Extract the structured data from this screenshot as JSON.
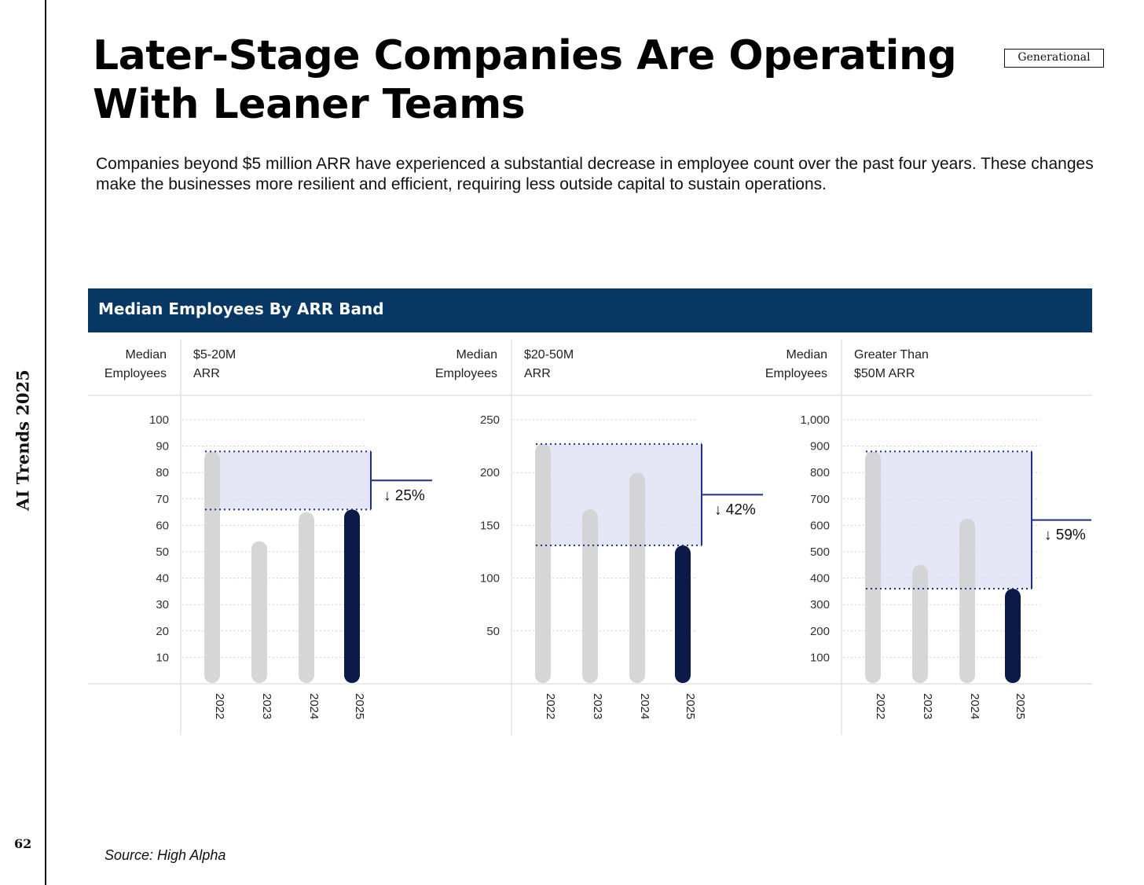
{
  "page": {
    "side_label": "AI Trends 2025",
    "page_number": "62",
    "title": "Later-Stage Companies Are Operating With Leaner Teams",
    "brand": "Generational",
    "subtitle": "Companies beyond $5 million ARR have experienced a substantial decrease in employee count over the past four years. These changes make the businesses more resilient and efficient, requiring less outside capital to sustain operations.",
    "chart_header": "Median Employees By ARR Band",
    "source": "Source: High Alpha"
  },
  "colors": {
    "header_bg": "#083763",
    "bar_past": "#d3d3d3",
    "bar_current": "#0c1a4a",
    "highlight_fill": "#dcdff4",
    "bracket": "#1e2f8c",
    "gridline": "#cfcfcf",
    "axis_text": "#333333"
  },
  "chart_data": [
    {
      "type": "bar",
      "title": "$5-20M ARR",
      "title_lines": [
        "$5-20M",
        "ARR"
      ],
      "ylabel": "Median Employees",
      "ylabel_lines": [
        "Median",
        "Employees"
      ],
      "categories": [
        "2022",
        "2023",
        "2024",
        "2025"
      ],
      "values": [
        88,
        54,
        65,
        66
      ],
      "ylim": [
        0,
        100
      ],
      "yticks": [
        10,
        20,
        30,
        40,
        50,
        60,
        70,
        80,
        90,
        100
      ],
      "ytick_labels": [
        "10",
        "20",
        "30",
        "40",
        "50",
        "60",
        "70",
        "80",
        "90",
        "100"
      ],
      "highlight": {
        "from": 88,
        "to": 66,
        "label": "↓ 25%"
      }
    },
    {
      "type": "bar",
      "title": "$20-50M ARR",
      "title_lines": [
        "$20-50M",
        "ARR"
      ],
      "ylabel": "Median Employees",
      "ylabel_lines": [
        "Median",
        "Employees"
      ],
      "categories": [
        "2022",
        "2023",
        "2024",
        "2025"
      ],
      "values": [
        227,
        165,
        200,
        131
      ],
      "ylim": [
        0,
        250
      ],
      "yticks": [
        50,
        100,
        150,
        200,
        250
      ],
      "ytick_labels": [
        "50",
        "100",
        "150",
        "200",
        "250"
      ],
      "highlight": {
        "from": 227,
        "to": 131,
        "label": "↓ 42%"
      }
    },
    {
      "type": "bar",
      "title": "Greater Than $50M ARR",
      "title_lines": [
        "Greater Than",
        "$50M ARR"
      ],
      "ylabel": "Median Employees",
      "ylabel_lines": [
        "Median",
        "Employees"
      ],
      "categories": [
        "2022",
        "2023",
        "2024",
        "2025"
      ],
      "values": [
        880,
        450,
        625,
        360
      ],
      "ylim": [
        0,
        1000
      ],
      "yticks": [
        100,
        200,
        300,
        400,
        500,
        600,
        700,
        800,
        900,
        1000
      ],
      "ytick_labels": [
        "100",
        "200",
        "300",
        "400",
        "500",
        "600",
        "700",
        "800",
        "900",
        "1,000"
      ],
      "highlight": {
        "from": 880,
        "to": 360,
        "label": "↓ 59%"
      }
    }
  ]
}
